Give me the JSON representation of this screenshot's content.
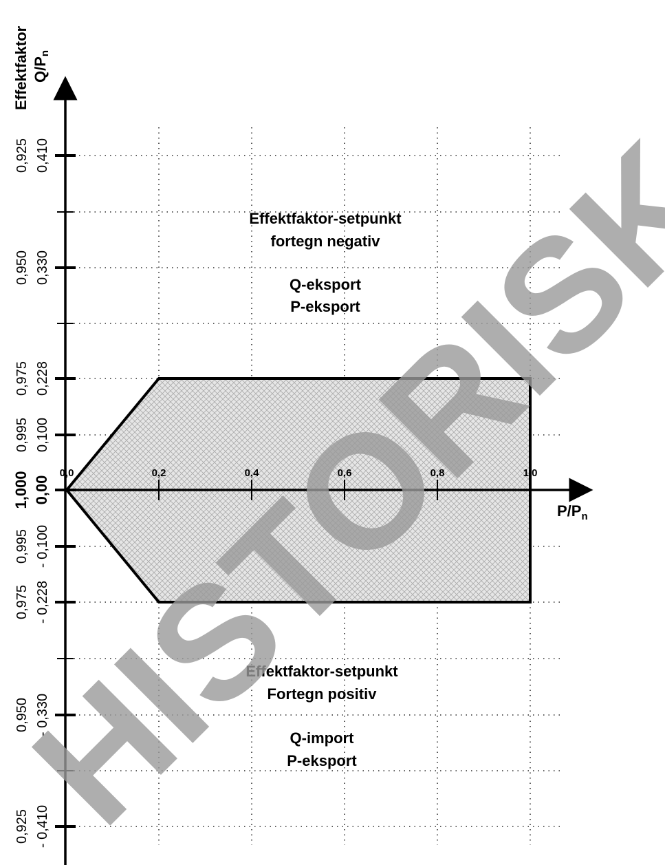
{
  "y_axis": {
    "title": "Effektfaktor",
    "unit": "Q/P",
    "unit_sub": "n",
    "ticks": [
      {
        "pf": "0,925",
        "q": "0,410"
      },
      {
        "pf": "0,950",
        "q": "0,330"
      },
      {
        "pf": "0,975",
        "q": "0,228"
      },
      {
        "pf": "0,995",
        "q": "0,100"
      },
      {
        "pf": "1,000",
        "q": "0,00"
      },
      {
        "pf": "0,995",
        "q": "- 0,100"
      },
      {
        "pf": "0,975",
        "q": "- 0,228"
      },
      {
        "pf": "0,950",
        "q": "- 0,330"
      },
      {
        "pf": "0,925",
        "q": "- 0,410"
      }
    ]
  },
  "x_axis": {
    "label": "P/P",
    "label_sub": "n",
    "ticks": [
      "0,0",
      "0,2",
      "0,4",
      "0,6",
      "0,8",
      "1,0"
    ]
  },
  "upper": {
    "lines": [
      "Effektfaktor-setpunkt",
      "fortegn negativ"
    ],
    "flow": [
      "Q-eksport",
      "P-eksport"
    ]
  },
  "lower": {
    "lines": [
      "Effektfaktor-setpunkt",
      "Fortegn positiv"
    ],
    "flow": [
      "Q-import",
      "P-eksport"
    ]
  },
  "watermark": "HISTORISK"
}
